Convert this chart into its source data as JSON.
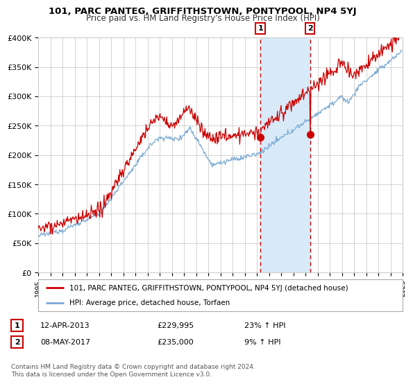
{
  "title": "101, PARC PANTEG, GRIFFITHSTOWN, PONTYPOOL, NP4 5YJ",
  "subtitle": "Price paid vs. HM Land Registry's House Price Index (HPI)",
  "legend_line1": "101, PARC PANTEG, GRIFFITHSTOWN, PONTYPOOL, NP4 5YJ (detached house)",
  "legend_line2": "HPI: Average price, detached house, Torfaen",
  "transaction1_date": "12-APR-2013",
  "transaction1_price": 229995,
  "transaction1_price_str": "£229,995",
  "transaction1_pct": "23% ↑ HPI",
  "transaction2_date": "08-MAY-2017",
  "transaction2_price": 235000,
  "transaction2_price_str": "£235,000",
  "transaction2_pct": "9% ↑ HPI",
  "footer": "Contains HM Land Registry data © Crown copyright and database right 2024.\nThis data is licensed under the Open Government Licence v3.0.",
  "hpi_color": "#7aaad4",
  "price_color": "#cc0000",
  "marker_color": "#cc0000",
  "highlight_color": "#d8eaf8",
  "grid_color": "#cccccc",
  "background_color": "#ffffff",
  "ylim": [
    0,
    400000
  ],
  "ytick_values": [
    0,
    50000,
    100000,
    150000,
    200000,
    250000,
    300000,
    350000,
    400000
  ],
  "year_start": 1995,
  "year_end": 2025,
  "transaction1_year": 2013.28,
  "transaction2_year": 2017.37
}
